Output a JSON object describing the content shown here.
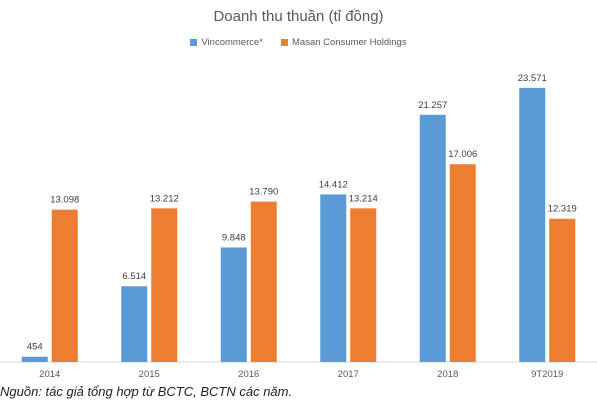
{
  "chart_data": {
    "type": "bar",
    "title": "Doanh thu thuần (tỉ đồng)",
    "categories": [
      "2014",
      "2015",
      "2016",
      "2017",
      "2018",
      "9T2019"
    ],
    "series": [
      {
        "name": "Vincommerce*",
        "color": "#5b9bd5",
        "values": [
          454,
          6514,
          9848,
          14412,
          21257,
          23571
        ],
        "labels": [
          "454",
          "6.514",
          "9.848",
          "14.412",
          "21.257",
          "23.571"
        ]
      },
      {
        "name": "Masan Consumer Holdings",
        "color": "#ed7d31",
        "values": [
          13098,
          13212,
          13790,
          13214,
          17006,
          12319
        ],
        "labels": [
          "13.098",
          "13.212",
          "13.790",
          "13.214",
          "17.006",
          "12.319"
        ]
      }
    ],
    "ylim": [
      0,
      27000
    ],
    "grid": false,
    "legend_position": "top"
  },
  "caption": "Nguồn: tác giả tổng hợp từ BCTC, BCTN các năm."
}
